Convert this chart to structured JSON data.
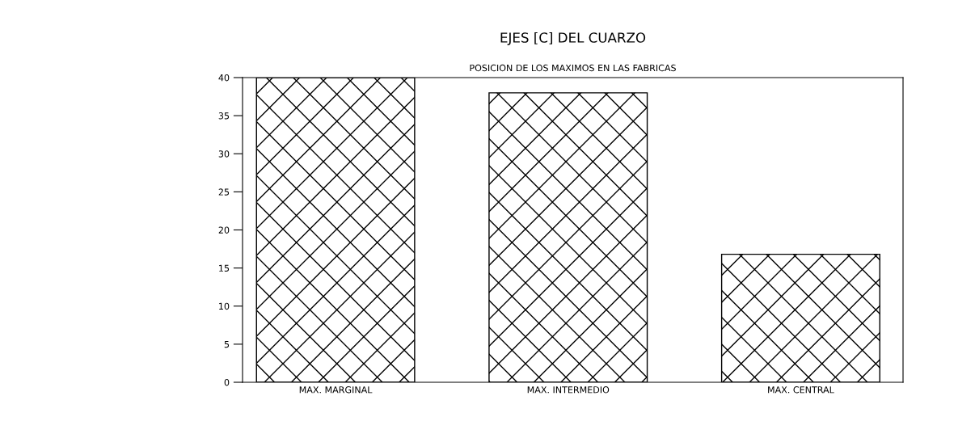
{
  "chart_data": {
    "type": "bar",
    "title": "EJES [C] DEL CUARZO",
    "subtitle": "POSICION DE LOS MAXIMOS EN LAS FABRICAS",
    "categories": [
      "MAX. MARGINAL",
      "MAX. INTERMEDIO",
      "MAX. CENTRAL"
    ],
    "values": [
      40,
      38,
      16.8
    ],
    "color": "#000000",
    "ylim": [
      0,
      40
    ],
    "yticks": [
      0,
      5,
      10,
      15,
      20,
      25,
      30,
      35,
      40
    ],
    "grid": false
  }
}
